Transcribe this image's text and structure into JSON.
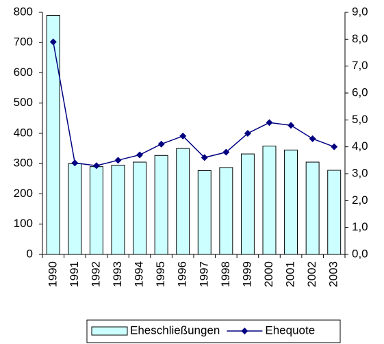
{
  "chart_data": {
    "type": "bar",
    "categories": [
      "1990",
      "1991",
      "1992",
      "1993",
      "1994",
      "1995",
      "1996",
      "1997",
      "1998",
      "1999",
      "2000",
      "2001",
      "2002",
      "2003"
    ],
    "series": [
      {
        "name": "Eheschließungen",
        "type": "bar",
        "color": "#ccffff",
        "values": [
          790,
          300,
          290,
          295,
          305,
          327,
          350,
          277,
          287,
          332,
          358,
          345,
          305,
          278
        ]
      },
      {
        "name": "Ehequote",
        "type": "line",
        "axis": "y2",
        "color": "#000080",
        "values": [
          7.9,
          3.4,
          3.3,
          3.5,
          3.7,
          4.1,
          4.4,
          3.6,
          3.8,
          4.5,
          4.9,
          4.8,
          4.3,
          4.0
        ]
      }
    ],
    "ylim": [
      0,
      800
    ],
    "yticks": [
      0,
      100,
      200,
      300,
      400,
      500,
      600,
      700,
      800
    ],
    "y2lim": [
      0,
      9
    ],
    "y2ticks": [
      {
        "value": 0,
        "label": "0,0"
      },
      {
        "value": 1,
        "label": "1,0"
      },
      {
        "value": 2,
        "label": "2,0"
      },
      {
        "value": 3,
        "label": "3,0"
      },
      {
        "value": 4,
        "label": "4,0"
      },
      {
        "value": 5,
        "label": "5,0"
      },
      {
        "value": 6,
        "label": "6,0"
      },
      {
        "value": 7,
        "label": "7,0"
      },
      {
        "value": 8,
        "label": "8,0"
      },
      {
        "value": 9,
        "label": "9,0"
      }
    ],
    "grid": false,
    "legend": "bottom"
  }
}
